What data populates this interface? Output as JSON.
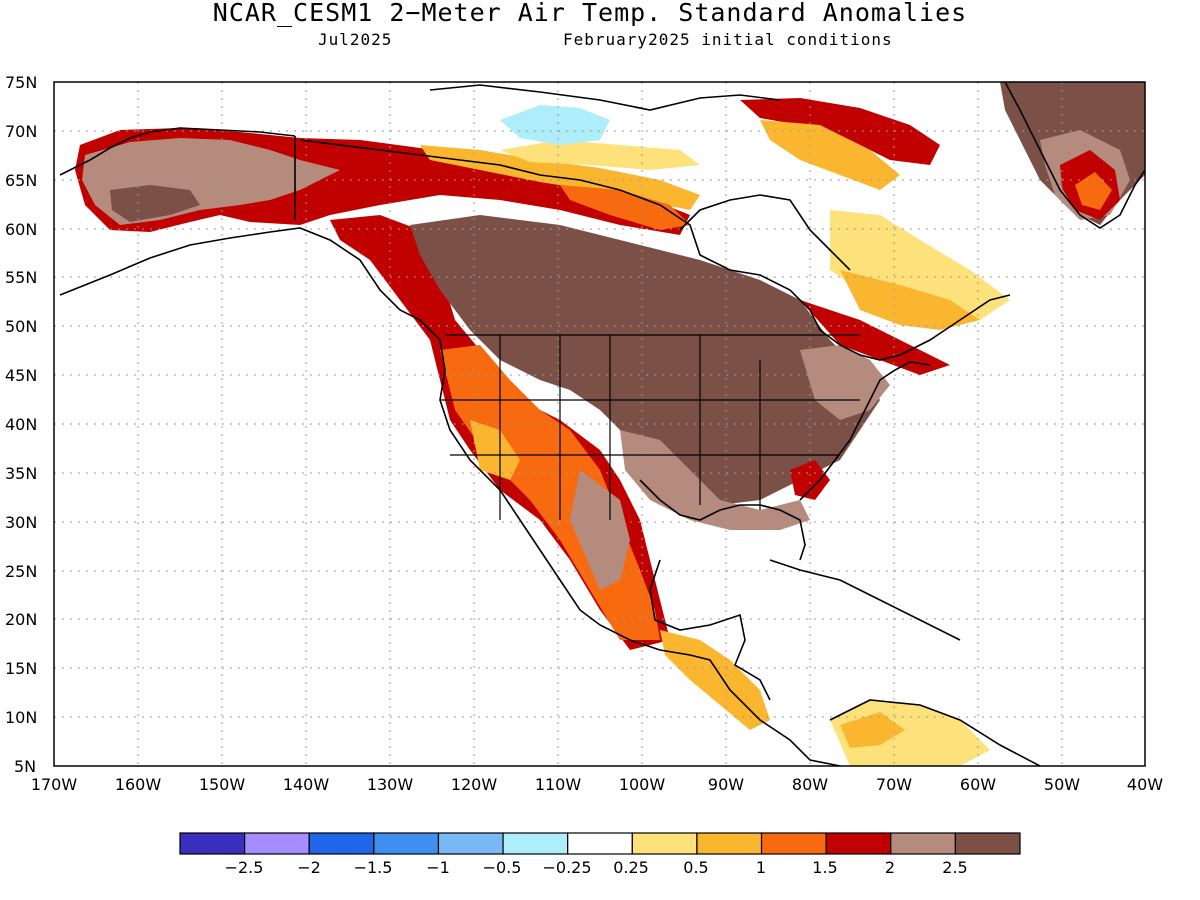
{
  "map": {
    "title": "NCAR_CESM1 2−Meter Air Temp. Standard Anomalies",
    "target_month": "Jul2025",
    "init_label": "February2025 initial conditions",
    "lat_labels": [
      "75N",
      "70N",
      "65N",
      "60N",
      "55N",
      "50N",
      "45N",
      "40N",
      "35N",
      "30N",
      "25N",
      "20N",
      "15N",
      "10N",
      "5N"
    ],
    "lon_labels": [
      "170W",
      "160W",
      "150W",
      "140W",
      "130W",
      "120W",
      "110W",
      "100W",
      "90W",
      "80W",
      "70W",
      "60W",
      "50W",
      "40W"
    ],
    "grid": true
  },
  "legend": {
    "labels": [
      "−2.5",
      "−2",
      "−1.5",
      "−1",
      "−0.5",
      "−0.25",
      "0.25",
      "0.5",
      "1",
      "1.5",
      "2",
      "2.5"
    ],
    "colors": [
      "#3b2fbf",
      "#a58cff",
      "#1f66e8",
      "#3f8fef",
      "#78b8f5",
      "#aeeefb",
      "#ffffff",
      "#fde17a",
      "#fbb630",
      "#f86a0f",
      "#c10000",
      "#b58b7e",
      "#7b5046"
    ]
  },
  "chart_data": {
    "type": "heatmap",
    "title": "NCAR_CESM1 2−Meter Air Temp. Standard Anomalies",
    "subtitle": "Jul2025   February2025 initial conditions",
    "x_range": [
      "170W",
      "40W"
    ],
    "y_range": [
      "5N",
      "75N"
    ],
    "color_bins": [
      -2.5,
      -2,
      -1.5,
      -1,
      -0.5,
      -0.25,
      0.25,
      0.5,
      1,
      1.5,
      2,
      2.5
    ]
  }
}
